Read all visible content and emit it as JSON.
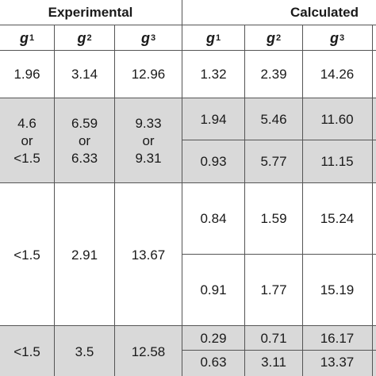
{
  "header": {
    "experimental": "Experimental",
    "calculated": "Calculated",
    "columns": [
      {
        "letter": "g",
        "sub": "1"
      },
      {
        "letter": "g",
        "sub": "2"
      },
      {
        "letter": "g",
        "sub": "3"
      },
      {
        "letter": "g",
        "sub": "1"
      },
      {
        "letter": "g",
        "sub": "2"
      },
      {
        "letter": "g",
        "sub": "3"
      }
    ]
  },
  "rows": {
    "r1": {
      "exp": [
        "1.96",
        "3.14",
        "12.96"
      ],
      "calc": [
        "1.32",
        "2.39",
        "14.26"
      ]
    },
    "r2": {
      "exp": [
        [
          "4.6",
          "or",
          "<1.5"
        ],
        [
          "6.59",
          "or",
          "6.33"
        ],
        [
          "9.33",
          "or",
          "9.31"
        ]
      ],
      "calc": [
        [
          "1.94",
          "5.46",
          "11.60"
        ],
        [
          "0.93",
          "5.77",
          "11.15"
        ]
      ]
    },
    "r3": {
      "exp": [
        "<1.5",
        "2.91",
        "13.67"
      ],
      "calc": [
        [
          "0.84",
          "1.59",
          "15.24"
        ],
        [
          "0.91",
          "1.77",
          "15.19"
        ]
      ]
    },
    "r4": {
      "exp": [
        "<1.5",
        "3.5",
        "12.58"
      ],
      "calc": [
        [
          "0.29",
          "0.71",
          "16.17"
        ],
        [
          "0.63",
          "3.11",
          "13.37"
        ]
      ]
    }
  },
  "colors": {
    "band": "#d9d9d9",
    "lines": "#555555",
    "text": "#1a1a1a"
  }
}
